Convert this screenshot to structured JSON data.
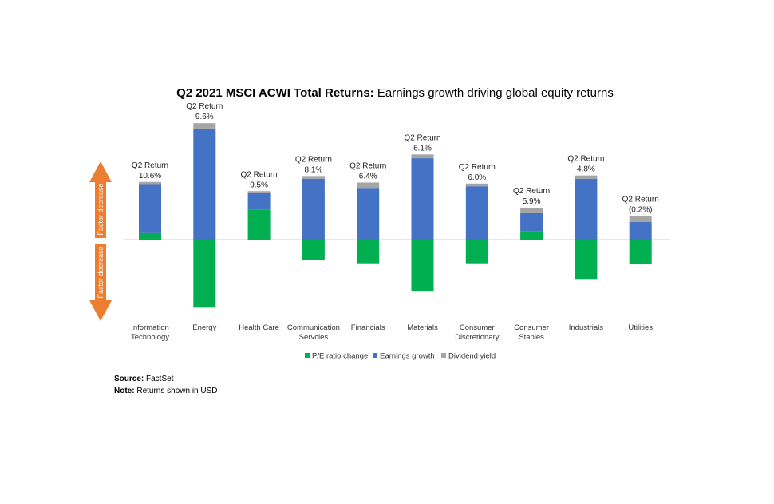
{
  "chart_data": {
    "type": "bar",
    "stacked": true,
    "title_bold": "Q2 2021 MSCI ACWI Total Returns:",
    "title_rest": " Earnings growth driving global equity returns",
    "categories": [
      [
        "Information",
        "Technology"
      ],
      [
        "Energy"
      ],
      [
        "Health Care"
      ],
      [
        "Communication",
        "Servcies"
      ],
      [
        "Financials"
      ],
      [
        "Materials"
      ],
      [
        "Consumer",
        "Discretionary"
      ],
      [
        "Consumer",
        "Staples"
      ],
      [
        "Industrials"
      ],
      [
        "Utilities"
      ]
    ],
    "return_prefix": "Q2 Return",
    "returns": [
      "10.6%",
      "9.6%",
      "9.5%",
      "8.1%",
      "6.4%",
      "6.1%",
      "6.0%",
      "5.9%",
      "4.8%",
      "(0.2%)"
    ],
    "series": [
      {
        "name": "P/E ratio change",
        "color": "#00b050",
        "values": [
          1.2,
          -12.5,
          5.6,
          -3.8,
          -4.4,
          -9.5,
          -4.4,
          1.6,
          -7.3,
          -4.6
        ]
      },
      {
        "name": "Earnings growth",
        "color": "#4472c4",
        "values": [
          9.1,
          20.6,
          3.0,
          11.3,
          9.6,
          15.1,
          9.9,
          3.3,
          11.3,
          3.3
        ]
      },
      {
        "name": "Dividend yield",
        "color": "#a5a5a5",
        "values": [
          0.4,
          1.0,
          0.4,
          0.5,
          1.0,
          0.7,
          0.5,
          1.0,
          0.6,
          1.1
        ]
      }
    ],
    "arrow_top_label": "Factor decrease",
    "arrow_bottom_label": "Factor decrease"
  },
  "notes": {
    "source_label": "Source:",
    "source_value": " FactSet",
    "note_label": "Note:",
    "note_value": " Returns shown in USD"
  }
}
